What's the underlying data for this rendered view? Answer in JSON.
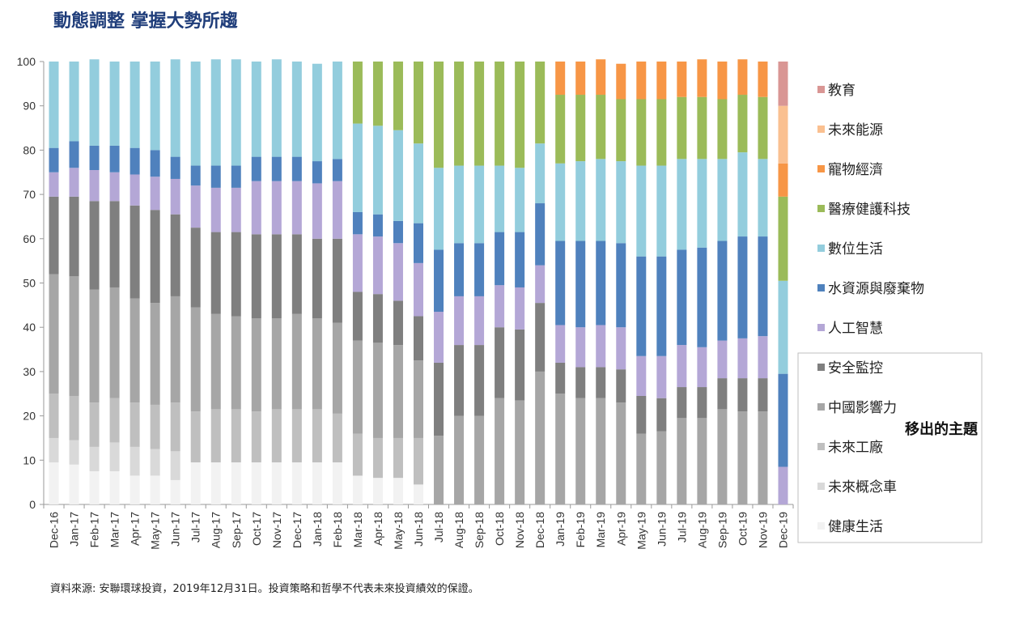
{
  "title": "動態調整 掌握大勢所趨",
  "source": "資料來源: 安聯環球投資，2019年12月31日。投資策略和哲學不代表未來投資績效的保證。",
  "removed_themes_label": "移出的主題",
  "chart_data": {
    "type": "bar",
    "stacked": true,
    "ylim": [
      0,
      100
    ],
    "yticks": [
      0,
      10,
      20,
      30,
      40,
      50,
      60,
      70,
      80,
      90,
      100
    ],
    "grid": false,
    "legend_position": "right",
    "categories": [
      "Dec-16",
      "Jan-17",
      "Feb-17",
      "Mar-17",
      "Apr-17",
      "May-17",
      "Jun-17",
      "Jul-17",
      "Aug-17",
      "Sep-17",
      "Oct-17",
      "Nov-17",
      "Dec-17",
      "Jan-18",
      "Feb-18",
      "Mar-18",
      "Apr-18",
      "May-18",
      "Jun-18",
      "Jul-18",
      "Aug-18",
      "Sep-18",
      "Oct-18",
      "Nov-18",
      "Dec-18",
      "Jan-19",
      "Feb-19",
      "Mar-19",
      "Apr-19",
      "May-19",
      "Jun-19",
      "Jul-19",
      "Aug-19",
      "Sep-19",
      "Oct-19",
      "Nov-19",
      "Dec-19"
    ],
    "series": [
      {
        "name": "健康生活",
        "color": "#f2f2f2",
        "values": [
          9.5,
          9,
          7.5,
          7.5,
          6.5,
          6.5,
          5.5,
          9.5,
          9.5,
          9.5,
          9.5,
          9.5,
          9.5,
          9.5,
          9.5,
          6.5,
          6,
          6,
          4.5,
          0,
          0,
          0,
          0,
          0,
          0,
          0,
          0,
          0,
          0,
          0,
          0,
          0,
          0,
          0,
          0,
          0,
          0
        ]
      },
      {
        "name": "未來概念車",
        "color": "#d9d9d9",
        "values": [
          5.5,
          5.5,
          5.5,
          6.5,
          6.5,
          6,
          6.5,
          0,
          0,
          0,
          0,
          0,
          0,
          0,
          0,
          0,
          0,
          0,
          0,
          0,
          0,
          0,
          0,
          0,
          0,
          0,
          0,
          0,
          0,
          0,
          0,
          0,
          0,
          0,
          0,
          0,
          0
        ]
      },
      {
        "name": "未來工廠",
        "color": "#bfbfbf",
        "values": [
          10,
          10,
          10,
          10,
          10,
          10,
          11,
          11.5,
          12,
          12,
          11.5,
          12,
          12,
          12,
          11,
          9.5,
          9,
          9,
          10.5,
          0,
          0,
          0,
          0,
          0,
          0,
          0,
          0,
          0,
          0,
          0,
          0,
          0,
          0,
          0,
          0,
          0,
          0
        ]
      },
      {
        "name": "中國影響力",
        "color": "#a6a6a6",
        "values": [
          27,
          27,
          25.5,
          25,
          23.5,
          23,
          24,
          23.5,
          21.5,
          21,
          21,
          20.5,
          21.5,
          20.5,
          20.5,
          21,
          21.5,
          21,
          17.5,
          15.5,
          20,
          20,
          24,
          23.5,
          30,
          25,
          24,
          24,
          23,
          16,
          16.5,
          19.5,
          19.5,
          21.5,
          21,
          21,
          0
        ]
      },
      {
        "name": "安全監控",
        "color": "#7f7f7f",
        "values": [
          17.5,
          18,
          20,
          19.5,
          21,
          21,
          18.5,
          18,
          18.5,
          19,
          19,
          19,
          18,
          18,
          19,
          11,
          11,
          10,
          10,
          16.5,
          16,
          16,
          16,
          16,
          15.5,
          7,
          7,
          7,
          7.5,
          8.5,
          7.5,
          7,
          7,
          7,
          7.5,
          7.5,
          0
        ]
      },
      {
        "name": "人工智慧",
        "color": "#b4a7d6",
        "values": [
          5.5,
          6.5,
          7,
          6.5,
          7,
          7.5,
          8,
          9.5,
          10,
          10,
          12,
          12,
          12,
          12.5,
          13,
          13,
          13,
          13,
          12,
          11.5,
          11,
          11,
          9.5,
          9.5,
          8.5,
          8.5,
          9,
          9.5,
          9.5,
          9,
          9.5,
          9.5,
          9,
          8.5,
          9,
          9.5,
          8.5
        ]
      },
      {
        "name": "水資源與廢棄物",
        "color": "#4f81bd",
        "values": [
          5.5,
          6,
          5.5,
          6,
          6,
          6,
          5,
          4.5,
          5,
          5,
          5.5,
          5.5,
          5.5,
          5,
          5,
          5,
          5,
          5,
          9,
          14,
          12,
          12,
          12,
          12.5,
          14,
          19,
          19.5,
          19,
          19,
          22.5,
          22.5,
          21.5,
          22.5,
          22.5,
          23,
          22.5,
          21
        ]
      },
      {
        "name": "數位生活",
        "color": "#93cddd",
        "values": [
          19.5,
          18,
          19.5,
          19,
          19.5,
          20,
          22,
          23.5,
          24,
          24,
          21.5,
          22,
          21.5,
          22,
          22,
          20,
          20,
          20.5,
          18,
          18.5,
          17.5,
          17.5,
          15,
          14.5,
          13.5,
          17.5,
          18,
          18.5,
          18.5,
          20.5,
          20.5,
          20.5,
          20,
          18.5,
          19,
          17.5,
          21
        ]
      },
      {
        "name": "醫療健護科技",
        "color": "#9bbb59",
        "values": [
          0,
          0,
          0,
          0,
          0,
          0,
          0,
          0,
          0,
          0,
          0,
          0,
          0,
          0,
          0,
          14,
          14.5,
          15.5,
          18.5,
          24,
          23.5,
          23.5,
          23.5,
          24,
          18.5,
          15.5,
          15,
          14.5,
          14,
          15,
          15,
          14,
          14,
          13.5,
          13,
          14,
          19
        ]
      },
      {
        "name": "寵物經濟",
        "color": "#f79646",
        "values": [
          0,
          0,
          0,
          0,
          0,
          0,
          0,
          0,
          0,
          0,
          0,
          0,
          0,
          0,
          0,
          0,
          0,
          0,
          0,
          0,
          0,
          0,
          0,
          0,
          0,
          7.5,
          7.5,
          8,
          8,
          8.5,
          8.5,
          8,
          8.5,
          8.5,
          8,
          8,
          7.5
        ]
      },
      {
        "name": "未來能源",
        "color": "#fac090",
        "values": [
          0,
          0,
          0,
          0,
          0,
          0,
          0,
          0,
          0,
          0,
          0,
          0,
          0,
          0,
          0,
          0,
          0,
          0,
          0,
          0,
          0,
          0,
          0,
          0,
          0,
          0,
          0,
          0,
          0,
          0,
          0,
          0,
          0,
          0,
          0,
          0,
          13
        ]
      },
      {
        "name": "教育",
        "color": "#d99694",
        "values": [
          0,
          0,
          0,
          0,
          0,
          0,
          0,
          0,
          0,
          0,
          0,
          0,
          0,
          0,
          0,
          0,
          0,
          0,
          0,
          0,
          0,
          0,
          0,
          0,
          0,
          0,
          0,
          0,
          0,
          0,
          0,
          0,
          0,
          0,
          0,
          0,
          10
        ]
      }
    ],
    "legend_order": [
      "教育",
      "未來能源",
      "寵物經濟",
      "醫療健護科技",
      "數位生活",
      "水資源與廢棄物",
      "人工智慧",
      "安全監控",
      "中國影響力",
      "未來工廠",
      "未來概念車",
      "健康生活"
    ]
  }
}
